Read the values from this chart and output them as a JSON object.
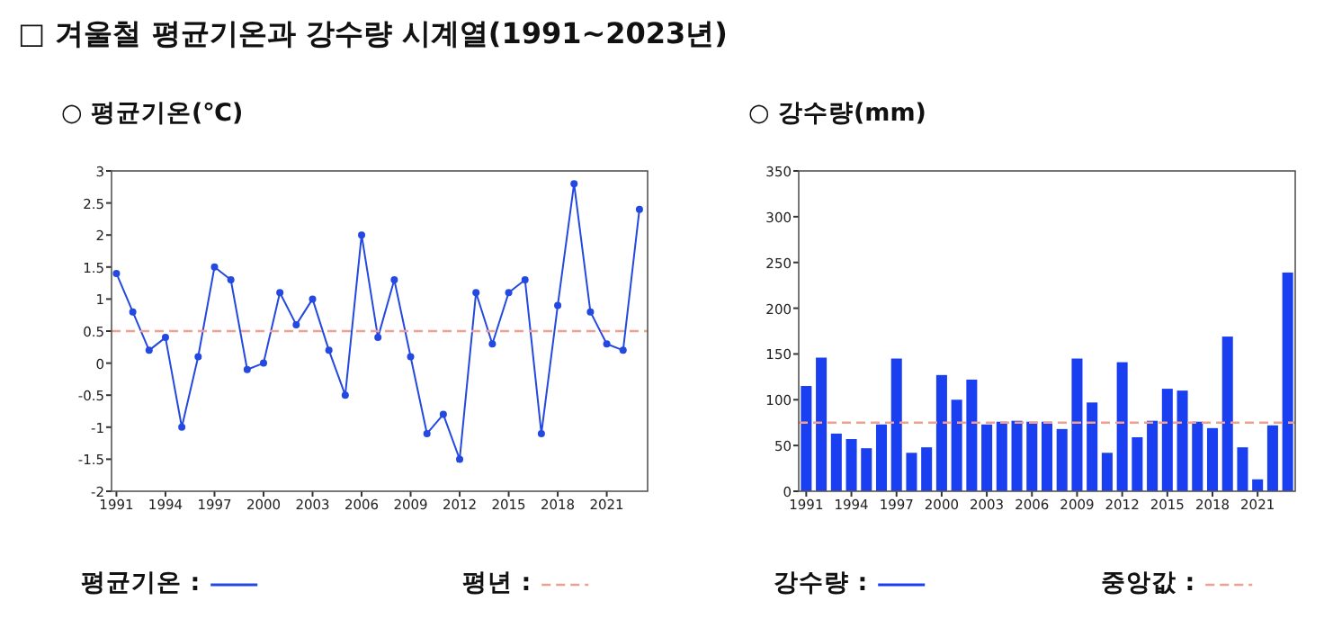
{
  "chart_data": [
    {
      "type": "line",
      "title": "□ 겨울철 평균기온과 강수량 시계열(1991~2023년)",
      "subtitle": "○ 평균기온(℃)",
      "x": [
        1991,
        1992,
        1993,
        1994,
        1995,
        1996,
        1997,
        1998,
        1999,
        2000,
        2001,
        2002,
        2003,
        2004,
        2005,
        2006,
        2007,
        2008,
        2009,
        2010,
        2011,
        2012,
        2013,
        2014,
        2015,
        2016,
        2017,
        2018,
        2019,
        2020,
        2021,
        2022,
        2023
      ],
      "series": [
        {
          "name": "평균기온 :",
          "color": "#2449e0",
          "values": [
            1.4,
            0.8,
            0.2,
            0.4,
            -1.0,
            0.1,
            1.5,
            1.3,
            -0.1,
            0.0,
            1.1,
            0.6,
            1.0,
            0.2,
            -0.5,
            2.0,
            0.4,
            1.3,
            0.1,
            -1.1,
            -0.8,
            -1.5,
            1.1,
            0.3,
            1.1,
            1.3,
            -1.1,
            0.9,
            2.8,
            0.8,
            0.3,
            0.2,
            2.4
          ]
        }
      ],
      "marker": "circle",
      "line_style": "solid",
      "legend": "bottom",
      "grid": false,
      "xlim": [
        1990.7,
        2023.5
      ],
      "xticks": [
        1991,
        1994,
        1997,
        2000,
        2003,
        2006,
        2009,
        2012,
        2015,
        2018,
        2021
      ],
      "ylim": [
        -2,
        3
      ],
      "yticks": [
        -2,
        -1.5,
        -1,
        -0.5,
        0,
        0.5,
        1,
        1.5,
        2,
        2.5,
        3
      ],
      "ref_lines": [
        {
          "axis": "y",
          "value": 0.5,
          "label": "평년 :",
          "color": "#f0a090",
          "line_style": "dashed"
        }
      ]
    },
    {
      "type": "bar",
      "subtitle": "○ 강수량(mm)",
      "x": [
        1991,
        1992,
        1993,
        1994,
        1995,
        1996,
        1997,
        1998,
        1999,
        2000,
        2001,
        2002,
        2003,
        2004,
        2005,
        2006,
        2007,
        2008,
        2009,
        2010,
        2011,
        2012,
        2013,
        2014,
        2015,
        2016,
        2017,
        2018,
        2019,
        2020,
        2021,
        2022,
        2023
      ],
      "series": [
        {
          "name": "강수량 :",
          "color": "#1a3ff0",
          "values": [
            115,
            146,
            63,
            57,
            47,
            73,
            145,
            42,
            48,
            127,
            100,
            122,
            73,
            76,
            77,
            76,
            76,
            68,
            145,
            97,
            42,
            141,
            59,
            77,
            112,
            110,
            76,
            69,
            169,
            48,
            13,
            72,
            239
          ]
        }
      ],
      "legend": "bottom",
      "grid": false,
      "xlim": [
        1990.5,
        2023.5
      ],
      "xticks": [
        1991,
        1994,
        1997,
        2000,
        2003,
        2006,
        2009,
        2012,
        2015,
        2018,
        2021
      ],
      "ylim": [
        0,
        350
      ],
      "yticks": [
        0,
        50,
        100,
        150,
        200,
        250,
        300,
        350
      ],
      "ref_lines": [
        {
          "axis": "y",
          "value": 75,
          "label": "중앙값 :",
          "color": "#f0a090",
          "line_style": "dashed"
        }
      ]
    }
  ]
}
